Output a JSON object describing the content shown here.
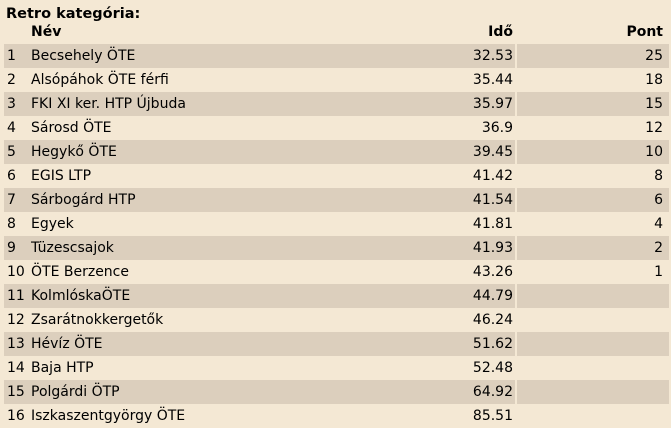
{
  "category_title": "Retro kategória:",
  "columns": {
    "name": "Név",
    "time": "Idő",
    "points": "Pont"
  },
  "rows": [
    {
      "rank": "1",
      "name": "Becsehely ÖTE",
      "time": "32.53",
      "points": "25"
    },
    {
      "rank": "2",
      "name": "Alsópáhok ÖTE férfi",
      "time": "35.44",
      "points": "18"
    },
    {
      "rank": "3",
      "name": "FKI XI ker. HTP Újbuda",
      "time": "35.97",
      "points": "15"
    },
    {
      "rank": "4",
      "name": "Sárosd ÖTE",
      "time": "36.9",
      "points": "12"
    },
    {
      "rank": "5",
      "name": "Hegykő ÖTE",
      "time": "39.45",
      "points": "10"
    },
    {
      "rank": "6",
      "name": "EGIS LTP",
      "time": "41.42",
      "points": "8"
    },
    {
      "rank": "7",
      "name": "Sárbogárd HTP",
      "time": "41.54",
      "points": "6"
    },
    {
      "rank": "8",
      "name": "Egyek",
      "time": "41.81",
      "points": "4"
    },
    {
      "rank": "9",
      "name": "Tüzescsajok",
      "time": "41.93",
      "points": "2"
    },
    {
      "rank": "10",
      "name": "ÖTE Berzence",
      "time": "43.26",
      "points": "1"
    },
    {
      "rank": "11",
      "name": "KolmlóskaÖTE",
      "time": "44.79",
      "points": ""
    },
    {
      "rank": "12",
      "name": "Zsarátnokkergetők",
      "time": "46.24",
      "points": ""
    },
    {
      "rank": "13",
      "name": "Hévíz ÖTE",
      "time": "51.62",
      "points": ""
    },
    {
      "rank": "14",
      "name": "Baja HTP",
      "time": "52.48",
      "points": ""
    },
    {
      "rank": "15",
      "name": "Polgárdi ÖTP",
      "time": "64.92",
      "points": ""
    },
    {
      "rank": "16",
      "name": "Iszkaszentgyörgy ÖTE",
      "time": "85.51",
      "points": ""
    }
  ],
  "colors": {
    "background": "#f4e8d4",
    "row_shade": "#dccfbd"
  }
}
